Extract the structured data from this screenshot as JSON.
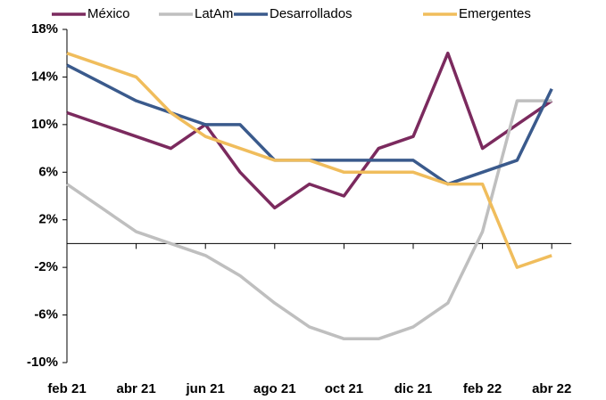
{
  "chart_data": {
    "type": "line",
    "categories": [
      "feb 21",
      null,
      "abr 21",
      null,
      "jun 21",
      null,
      "ago 21",
      null,
      "oct 21",
      null,
      "dic 21",
      null,
      "feb 22",
      null,
      "abr 22"
    ],
    "series": [
      {
        "name": "México",
        "color": "#7b2a5e",
        "values": [
          11,
          10,
          9,
          8,
          10,
          6,
          3,
          5,
          4,
          8,
          9,
          16,
          8,
          10,
          12
        ]
      },
      {
        "name": "LatAm",
        "color": "#bfbfbf",
        "values": [
          5,
          3,
          1,
          0,
          -1,
          -2.7,
          -5,
          -7,
          -8,
          -8,
          -7,
          -5,
          1,
          12,
          12
        ]
      },
      {
        "name": "Desarrollados",
        "color": "#3a5a8c",
        "values": [
          15,
          13.5,
          12,
          11,
          10,
          10,
          7,
          7,
          7,
          7,
          7,
          5,
          6,
          7,
          13
        ]
      },
      {
        "name": "Emergentes",
        "color": "#f0bd5c",
        "values": [
          16,
          15,
          14,
          11,
          9,
          8,
          7,
          7,
          6,
          6,
          6,
          5,
          5,
          -2,
          -1
        ]
      }
    ],
    "ylim": [
      -10,
      18
    ],
    "yticks": [
      {
        "value": -10,
        "label": "-10%"
      },
      {
        "value": -6,
        "label": "-6%"
      },
      {
        "value": -2,
        "label": "-2%"
      },
      {
        "value": 2,
        "label": "2%"
      },
      {
        "value": 6,
        "label": "6%"
      },
      {
        "value": 10,
        "label": "10%"
      },
      {
        "value": 14,
        "label": "14%"
      },
      {
        "value": 18,
        "label": "18%"
      }
    ],
    "legend": "top"
  }
}
